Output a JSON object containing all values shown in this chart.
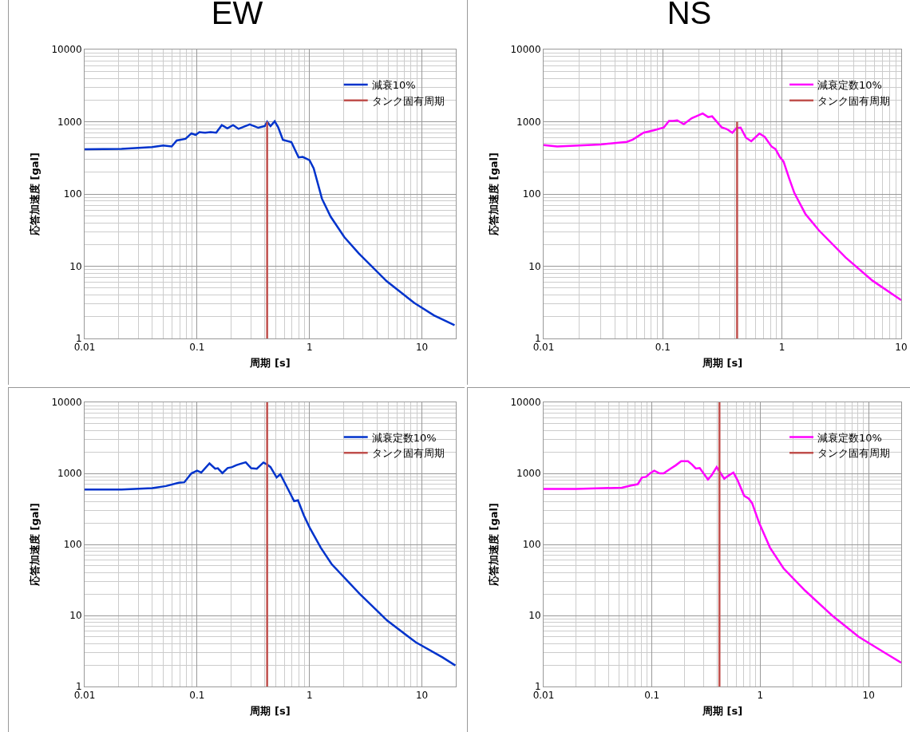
{
  "chart_data": [
    {
      "type": "line",
      "title": "EW",
      "xlabel": "周期 [s]",
      "ylabel": "応答加速度 [gal]",
      "log": "xy",
      "grid": true,
      "legend": "top right",
      "xlim": [
        0.01,
        20
      ],
      "xticks": [
        0.01,
        0.1,
        1,
        10
      ],
      "ylim": [
        1,
        10000
      ],
      "yticks": [
        1,
        10,
        100,
        1000,
        10000
      ],
      "series": [
        {
          "name": "減衰10%",
          "color": "#0033cc",
          "x": [
            0.01,
            0.0213,
            0.0398,
            0.05,
            0.0595,
            0.066,
            0.079,
            0.089,
            0.097,
            0.105,
            0.118,
            0.132,
            0.148,
            0.166,
            0.186,
            0.209,
            0.234,
            0.262,
            0.294,
            0.35,
            0.4,
            0.42,
            0.45,
            0.49,
            0.526,
            0.58,
            0.69,
            0.8,
            0.87,
            1.0,
            1.09,
            1.29,
            1.54,
            2.04,
            2.75,
            4.86,
            8.55,
            12.8,
            19.5
          ],
          "values": [
            417,
            420,
            447,
            470,
            455,
            551,
            580,
            690,
            657,
            717,
            705,
            717,
            705,
            900,
            810,
            900,
            797,
            854,
            916,
            825,
            869,
            1000,
            869,
            1017,
            839,
            561,
            523,
            321,
            326,
            293,
            226,
            86,
            48.7,
            25.3,
            15.0,
            6.2,
            3.1,
            2.09,
            1.53
          ]
        },
        {
          "name": "タンク固有周期",
          "color": "#c0504d",
          "x": [
            0.42,
            0.42
          ],
          "values": [
            1,
            1000
          ]
        }
      ]
    },
    {
      "type": "line",
      "title": "NS",
      "xlabel": "周期 [s]",
      "ylabel": "応答加速度 [gal]",
      "log": "xy",
      "grid": true,
      "legend": "top right",
      "xlim": [
        0.01,
        10
      ],
      "xticks": [
        0.01,
        0.1,
        1,
        10
      ],
      "ylim": [
        1,
        10000
      ],
      "yticks": [
        1,
        10,
        100,
        1000,
        10000
      ],
      "series": [
        {
          "name": "減衰定数10%",
          "color": "#ff00ff",
          "x": [
            0.01,
            0.013,
            0.03,
            0.05,
            0.056,
            0.069,
            0.084,
            0.102,
            0.1127,
            0.122,
            0.132,
            0.15,
            0.175,
            0.216,
            0.24,
            0.259,
            0.311,
            0.345,
            0.383,
            0.415,
            0.449,
            0.498,
            0.552,
            0.646,
            0.716,
            0.816,
            0.883,
            0.955,
            1.03,
            1.146,
            1.27,
            1.57,
            2.03,
            3.42,
            5.75,
            10
          ],
          "values": [
            475,
            455,
            484,
            527,
            566,
            705,
            762,
            832,
            1027,
            1027,
            1045,
            924,
            1120,
            1300,
            1160,
            1190,
            839,
            789,
            705,
            818,
            832,
            602,
            537,
            686,
            618,
            455,
            417,
            329,
            281,
            166,
            103,
            53,
            31.6,
            13.2,
            6.3,
            3.4
          ]
        },
        {
          "name": "タンク固有周期",
          "color": "#c0504d",
          "x": [
            0.42,
            0.42
          ],
          "values": [
            1,
            1000
          ]
        }
      ]
    },
    {
      "type": "line",
      "xlabel": "周期 [s]",
      "ylabel": "応答加速度 [gal]",
      "log": "xy",
      "grid": true,
      "legend": "top right",
      "xlim": [
        0.01,
        20
      ],
      "xticks": [
        0.01,
        0.1,
        1,
        10
      ],
      "ylim": [
        1,
        10000
      ],
      "yticks": [
        1,
        10,
        100,
        1000,
        10000
      ],
      "series": [
        {
          "name": "減衰定数10%",
          "color": "#0033cc",
          "x": [
            0.01,
            0.0213,
            0.04,
            0.053,
            0.0686,
            0.077,
            0.089,
            0.1,
            0.109,
            0.129,
            0.145,
            0.153,
            0.168,
            0.187,
            0.205,
            0.222,
            0.242,
            0.271,
            0.303,
            0.34,
            0.389,
            0.42,
            0.45,
            0.51,
            0.55,
            0.62,
            0.73,
            0.79,
            0.89,
            1.0,
            1.26,
            1.57,
            2.78,
            4.9,
            8.8,
            15.3,
            19.8
          ],
          "values": [
            591,
            591,
            618,
            663,
            736,
            749,
            1000,
            1091,
            1027,
            1383,
            1160,
            1180,
            1009,
            1190,
            1225,
            1300,
            1358,
            1432,
            1180,
            1160,
            1420,
            1335,
            1225,
            877,
            974,
            674,
            406,
            417,
            257,
            174,
            90,
            53,
            20.3,
            8.5,
            4.2,
            2.56,
            1.98
          ]
        },
        {
          "name": "タンク固有周期",
          "color": "#c0504d",
          "x": [
            0.42,
            0.42
          ],
          "values": [
            1,
            10000
          ]
        }
      ]
    },
    {
      "type": "line",
      "xlabel": "周期 [s]",
      "ylabel": "応答加速度 [gal]",
      "log": "xy",
      "grid": true,
      "legend": "top right",
      "xlim": [
        0.01,
        20
      ],
      "xticks": [
        0.01,
        0.1,
        1,
        10
      ],
      "ylim": [
        1,
        10000
      ],
      "yticks": [
        1,
        10,
        100,
        1000,
        10000
      ],
      "series": [
        {
          "name": "減衰定数10%",
          "color": "#ff00ff",
          "x": [
            0.01,
            0.0199,
            0.0527,
            0.064,
            0.074,
            0.081,
            0.088,
            0.096,
            0.105,
            0.118,
            0.128,
            0.148,
            0.166,
            0.186,
            0.215,
            0.234,
            0.254,
            0.276,
            0.329,
            0.358,
            0.396,
            0.44,
            0.465,
            0.515,
            0.565,
            0.617,
            0.71,
            0.78,
            0.84,
            0.98,
            1.23,
            1.64,
            2.6,
            4.6,
            8.1,
            14.4,
            20
          ],
          "values": [
            602,
            602,
            629,
            674,
            705,
            877,
            892,
            1000,
            1091,
            1000,
            1000,
            1160,
            1300,
            1483,
            1483,
            1335,
            1170,
            1190,
            818,
            957,
            1225,
            957,
            839,
            941,
            1027,
            802,
            484,
            443,
            382,
            198,
            90,
            46,
            22.3,
            10,
            5,
            2.93,
            2.16
          ]
        },
        {
          "name": "タンク固有周期",
          "color": "#c0504d",
          "x": [
            0.42,
            0.42
          ],
          "values": [
            1,
            10000
          ]
        }
      ]
    }
  ]
}
